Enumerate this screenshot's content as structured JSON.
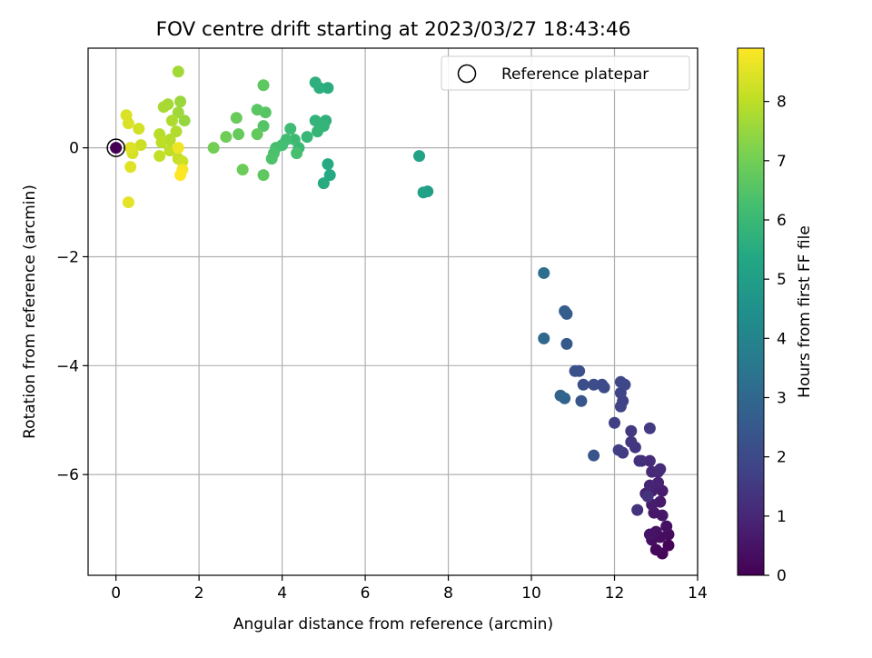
{
  "chart_data": {
    "type": "scatter",
    "title": "FOV centre drift starting at 2023/03/27 18:43:46",
    "xlabel": "Angular distance from reference (arcmin)",
    "ylabel": "Rotation from reference (arcmin)",
    "xlim": [
      -0.67,
      14.0
    ],
    "ylim": [
      -7.85,
      1.83
    ],
    "xticks": [
      "0",
      "2",
      "4",
      "6",
      "8",
      "10",
      "12",
      "14"
    ],
    "yticks": [
      "0",
      "−2",
      "−4",
      "−6"
    ],
    "grid": true,
    "legend": {
      "placement": "top-right",
      "entries": [
        "Reference platepar"
      ]
    },
    "colorbar": {
      "label": "Hours from first FF file",
      "range": [
        0,
        8.9
      ],
      "ticks": [
        "0",
        "1",
        "2",
        "3",
        "4",
        "5",
        "6",
        "7",
        "8"
      ],
      "colormap": "viridis"
    },
    "reference": {
      "x": 0,
      "y": 0
    },
    "points": [
      {
        "x": 0,
        "y": 0,
        "t": 0
      },
      {
        "x": 13.3,
        "y": -7.3,
        "t": 0.1
      },
      {
        "x": 13.15,
        "y": -7.45,
        "t": 0.15
      },
      {
        "x": 13.0,
        "y": -7.38,
        "t": 0.2
      },
      {
        "x": 13.3,
        "y": -7.1,
        "t": 0.25
      },
      {
        "x": 13.1,
        "y": -7.15,
        "t": 0.3
      },
      {
        "x": 12.9,
        "y": -7.2,
        "t": 0.35
      },
      {
        "x": 13.25,
        "y": -6.95,
        "t": 0.4
      },
      {
        "x": 13.0,
        "y": -7.05,
        "t": 0.45
      },
      {
        "x": 12.85,
        "y": -7.1,
        "t": 0.5
      },
      {
        "x": 13.15,
        "y": -6.75,
        "t": 0.55
      },
      {
        "x": 12.95,
        "y": -6.7,
        "t": 0.6
      },
      {
        "x": 13.1,
        "y": -6.5,
        "t": 0.65
      },
      {
        "x": 12.9,
        "y": -6.55,
        "t": 0.7
      },
      {
        "x": 13.15,
        "y": -6.3,
        "t": 0.75
      },
      {
        "x": 12.9,
        "y": -6.3,
        "t": 0.8
      },
      {
        "x": 12.75,
        "y": -6.35,
        "t": 0.85
      },
      {
        "x": 13.05,
        "y": -6.15,
        "t": 0.9
      },
      {
        "x": 12.85,
        "y": -6.2,
        "t": 0.95
      },
      {
        "x": 13.05,
        "y": -5.95,
        "t": 1.0
      },
      {
        "x": 12.9,
        "y": -5.95,
        "t": 1.05
      },
      {
        "x": 13.1,
        "y": -5.9,
        "t": 1.1
      },
      {
        "x": 12.85,
        "y": -5.75,
        "t": 1.15
      },
      {
        "x": 12.65,
        "y": -5.75,
        "t": 1.2
      },
      {
        "x": 12.6,
        "y": -5.75,
        "t": 1.25
      },
      {
        "x": 12.55,
        "y": -6.65,
        "t": 1.3
      },
      {
        "x": 12.8,
        "y": -6.4,
        "t": 1.35
      },
      {
        "x": 12.5,
        "y": -5.5,
        "t": 1.4
      },
      {
        "x": 12.4,
        "y": -5.4,
        "t": 1.45
      },
      {
        "x": 12.4,
        "y": -5.2,
        "t": 1.5
      },
      {
        "x": 12.85,
        "y": -5.15,
        "t": 1.55
      },
      {
        "x": 12.2,
        "y": -5.6,
        "t": 1.6
      },
      {
        "x": 12.1,
        "y": -5.55,
        "t": 1.65
      },
      {
        "x": 12.0,
        "y": -5.05,
        "t": 1.7
      },
      {
        "x": 12.2,
        "y": -4.65,
        "t": 1.75
      },
      {
        "x": 12.15,
        "y": -4.75,
        "t": 1.8
      },
      {
        "x": 12.15,
        "y": -4.5,
        "t": 1.85
      },
      {
        "x": 12.25,
        "y": -4.35,
        "t": 1.9
      },
      {
        "x": 12.15,
        "y": -4.3,
        "t": 1.95
      },
      {
        "x": 11.75,
        "y": -4.4,
        "t": 2.0
      },
      {
        "x": 11.7,
        "y": -4.35,
        "t": 2.05
      },
      {
        "x": 11.5,
        "y": -4.35,
        "t": 2.1
      },
      {
        "x": 11.25,
        "y": -4.35,
        "t": 2.15
      },
      {
        "x": 11.15,
        "y": -4.1,
        "t": 2.2
      },
      {
        "x": 11.05,
        "y": -4.1,
        "t": 2.25
      },
      {
        "x": 11.5,
        "y": -5.65,
        "t": 2.3
      },
      {
        "x": 11.2,
        "y": -4.65,
        "t": 2.4
      },
      {
        "x": 10.85,
        "y": -3.6,
        "t": 2.5
      },
      {
        "x": 10.85,
        "y": -3.05,
        "t": 2.6
      },
      {
        "x": 10.8,
        "y": -3.0,
        "t": 2.7
      },
      {
        "x": 10.8,
        "y": -4.6,
        "t": 2.8
      },
      {
        "x": 10.7,
        "y": -4.55,
        "t": 2.9
      },
      {
        "x": 10.3,
        "y": -3.5,
        "t": 3.0
      },
      {
        "x": 10.3,
        "y": -2.3,
        "t": 3.2
      },
      {
        "x": 7.5,
        "y": -0.8,
        "t": 5.0
      },
      {
        "x": 7.4,
        "y": -0.82,
        "t": 5.1
      },
      {
        "x": 7.3,
        "y": -0.15,
        "t": 5.2
      },
      {
        "x": 5.15,
        "y": -0.5,
        "t": 5.4
      },
      {
        "x": 5.1,
        "y": -0.3,
        "t": 5.45
      },
      {
        "x": 5.0,
        "y": -0.65,
        "t": 5.5
      },
      {
        "x": 5.1,
        "y": 1.1,
        "t": 5.55
      },
      {
        "x": 4.9,
        "y": 1.1,
        "t": 5.6
      },
      {
        "x": 4.8,
        "y": 1.2,
        "t": 5.65
      },
      {
        "x": 5.05,
        "y": 0.5,
        "t": 5.7
      },
      {
        "x": 4.9,
        "y": 0.45,
        "t": 5.75
      },
      {
        "x": 4.8,
        "y": 0.5,
        "t": 5.8
      },
      {
        "x": 5.0,
        "y": 0.4,
        "t": 5.85
      },
      {
        "x": 4.85,
        "y": 0.3,
        "t": 5.9
      },
      {
        "x": 4.6,
        "y": 0.2,
        "t": 5.95
      },
      {
        "x": 4.4,
        "y": 0.0,
        "t": 6.0
      },
      {
        "x": 4.3,
        "y": 0.15,
        "t": 6.05
      },
      {
        "x": 4.2,
        "y": 0.35,
        "t": 6.1
      },
      {
        "x": 4.1,
        "y": 0.15,
        "t": 6.15
      },
      {
        "x": 4.0,
        "y": 0.05,
        "t": 6.2
      },
      {
        "x": 3.85,
        "y": 0.0,
        "t": 6.25
      },
      {
        "x": 4.35,
        "y": -0.1,
        "t": 6.3
      },
      {
        "x": 3.8,
        "y": -0.1,
        "t": 6.35
      },
      {
        "x": 3.75,
        "y": -0.2,
        "t": 6.4
      },
      {
        "x": 3.55,
        "y": 0.4,
        "t": 6.5
      },
      {
        "x": 3.6,
        "y": 0.65,
        "t": 6.55
      },
      {
        "x": 3.4,
        "y": 0.7,
        "t": 6.6
      },
      {
        "x": 3.55,
        "y": 1.15,
        "t": 6.65
      },
      {
        "x": 3.55,
        "y": -0.5,
        "t": 6.7
      },
      {
        "x": 3.4,
        "y": 0.25,
        "t": 6.75
      },
      {
        "x": 2.95,
        "y": 0.25,
        "t": 6.8
      },
      {
        "x": 2.9,
        "y": 0.55,
        "t": 6.85
      },
      {
        "x": 3.05,
        "y": -0.4,
        "t": 6.9
      },
      {
        "x": 2.65,
        "y": 0.2,
        "t": 6.95
      },
      {
        "x": 2.35,
        "y": 0.0,
        "t": 7.0
      },
      {
        "x": 1.65,
        "y": 0.5,
        "t": 7.5
      },
      {
        "x": 1.55,
        "y": 0.85,
        "t": 7.55
      },
      {
        "x": 1.5,
        "y": 0.65,
        "t": 7.6
      },
      {
        "x": 1.5,
        "y": 1.4,
        "t": 7.65
      },
      {
        "x": 1.25,
        "y": 0.8,
        "t": 7.7
      },
      {
        "x": 1.15,
        "y": 0.75,
        "t": 7.75
      },
      {
        "x": 1.35,
        "y": 0.5,
        "t": 7.8
      },
      {
        "x": 1.45,
        "y": 0.3,
        "t": 7.85
      },
      {
        "x": 1.3,
        "y": 0.15,
        "t": 7.9
      },
      {
        "x": 1.05,
        "y": 0.25,
        "t": 7.95
      },
      {
        "x": 1.1,
        "y": 0.1,
        "t": 8.0
      },
      {
        "x": 1.3,
        "y": -0.05,
        "t": 8.05
      },
      {
        "x": 1.05,
        "y": -0.15,
        "t": 8.1
      },
      {
        "x": 1.5,
        "y": -0.2,
        "t": 8.15
      },
      {
        "x": 1.6,
        "y": -0.25,
        "t": 8.2
      },
      {
        "x": 0.6,
        "y": 0.05,
        "t": 8.25
      },
      {
        "x": 0.55,
        "y": 0.35,
        "t": 8.3
      },
      {
        "x": 0.4,
        "y": -0.1,
        "t": 8.35
      },
      {
        "x": 0.3,
        "y": 0.45,
        "t": 8.4
      },
      {
        "x": 0.25,
        "y": 0.6,
        "t": 8.42
      },
      {
        "x": 0.35,
        "y": 0.0,
        "t": 8.45
      },
      {
        "x": 0.35,
        "y": -0.35,
        "t": 8.5
      },
      {
        "x": 0.3,
        "y": -1.0,
        "t": 8.55
      },
      {
        "x": 1.5,
        "y": 0.0,
        "t": 8.7
      },
      {
        "x": 1.6,
        "y": -0.4,
        "t": 8.8
      },
      {
        "x": 1.55,
        "y": -0.5,
        "t": 8.9
      }
    ]
  }
}
